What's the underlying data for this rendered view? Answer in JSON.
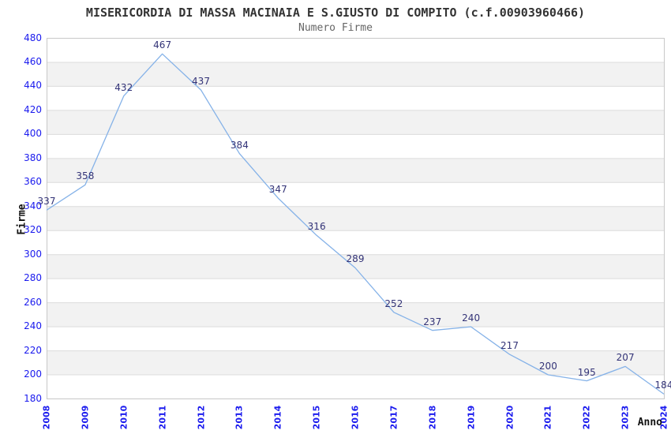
{
  "chart_data": {
    "type": "line",
    "title": "MISERICORDIA DI MASSA MACINAIA E S.GIUSTO DI COMPITO (c.f.00903960466)",
    "subtitle": "Numero Firme",
    "xlabel": "Anno",
    "ylabel": "Firme",
    "categories": [
      "2008",
      "2009",
      "2010",
      "2011",
      "2012",
      "2013",
      "2014",
      "2015",
      "2016",
      "2017",
      "2018",
      "2019",
      "2020",
      "2021",
      "2022",
      "2023",
      "2024"
    ],
    "series": [
      {
        "name": "Numero Firme",
        "values": [
          337,
          358,
          432,
          467,
          437,
          384,
          347,
          316,
          289,
          252,
          237,
          240,
          217,
          200,
          195,
          207,
          184
        ]
      }
    ],
    "ylim": [
      180,
      480
    ],
    "ytick_step": 20,
    "grid": "horizontal",
    "bands": "alternating gray between every other gridline pair starting 460-440",
    "legend_position": "none",
    "point_labels_visible": true,
    "colors": {
      "line": "#85b2e8",
      "tick_label": "#1a1aee",
      "point_label": "#333377",
      "gridline": "#dcdcdc",
      "band": "#f2f2f2",
      "plot_border": "#c8c8c8",
      "plot_background": "#ffffff",
      "title": "#333333",
      "subtitle": "#666666",
      "axis_title": "#111111"
    }
  }
}
